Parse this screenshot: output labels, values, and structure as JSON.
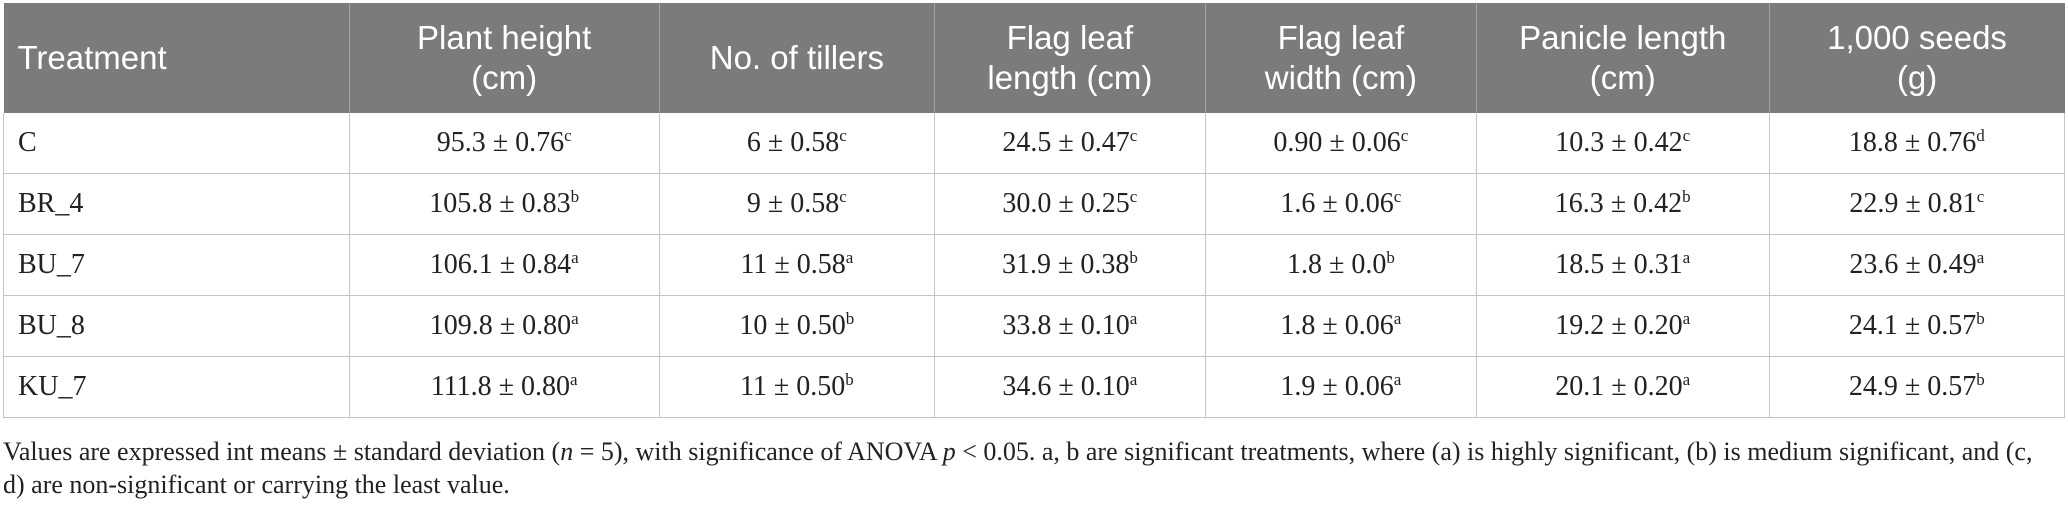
{
  "table": {
    "headers": [
      [
        "Treatment"
      ],
      [
        "Plant height",
        "(cm)"
      ],
      [
        "No. of tillers"
      ],
      [
        "Flag leaf",
        "length (cm)"
      ],
      [
        "Flag leaf",
        "width (cm)"
      ],
      [
        "Panicle length",
        "(cm)"
      ],
      [
        "1,000 seeds",
        "(g)"
      ]
    ],
    "rows": [
      [
        {
          "v": "C"
        },
        {
          "v": "95.3 ± 0.76",
          "s": "c"
        },
        {
          "v": "6 ± 0.58",
          "s": "c"
        },
        {
          "v": "24.5 ± 0.47",
          "s": "c"
        },
        {
          "v": "0.90 ± 0.06",
          "s": "c"
        },
        {
          "v": "10.3 ± 0.42",
          "s": "c"
        },
        {
          "v": "18.8 ± 0.76",
          "s": "d"
        }
      ],
      [
        {
          "v": "BR_4"
        },
        {
          "v": "105.8 ± 0.83",
          "s": "b"
        },
        {
          "v": "9 ± 0.58",
          "s": "c"
        },
        {
          "v": "30.0 ± 0.25",
          "s": "c"
        },
        {
          "v": "1.6 ± 0.06",
          "s": "c"
        },
        {
          "v": "16.3 ± 0.42",
          "s": "b"
        },
        {
          "v": "22.9 ± 0.81",
          "s": "c"
        }
      ],
      [
        {
          "v": "BU_7"
        },
        {
          "v": "106.1 ± 0.84",
          "s": "a"
        },
        {
          "v": "11 ± 0.58",
          "s": "a"
        },
        {
          "v": "31.9 ± 0.38",
          "s": "b"
        },
        {
          "v": "1.8 ± 0.0",
          "s": "b"
        },
        {
          "v": "18.5 ± 0.31",
          "s": "a"
        },
        {
          "v": "23.6 ± 0.49",
          "s": "a"
        }
      ],
      [
        {
          "v": "BU_8"
        },
        {
          "v": "109.8 ± 0.80",
          "s": "a"
        },
        {
          "v": "10 ± 0.50",
          "s": "b"
        },
        {
          "v": "33.8 ± 0.10",
          "s": "a"
        },
        {
          "v": "1.8 ± 0.06",
          "s": "a"
        },
        {
          "v": "19.2 ± 0.20",
          "s": "a"
        },
        {
          "v": "24.1 ± 0.57",
          "s": "b"
        }
      ],
      [
        {
          "v": "KU_7"
        },
        {
          "v": "111.8 ± 0.80",
          "s": "a"
        },
        {
          "v": "11 ± 0.50",
          "s": "b"
        },
        {
          "v": "34.6 ± 0.10",
          "s": "a"
        },
        {
          "v": "1.9 ± 0.06",
          "s": "a"
        },
        {
          "v": "20.1 ± 0.20",
          "s": "a"
        },
        {
          "v": "24.9 ± 0.57",
          "s": "b"
        }
      ]
    ]
  },
  "footnote": {
    "part1": "Values are expressed int means ± standard deviation (",
    "n": "n",
    "part2": " = 5), with significance of ANOVA ",
    "p": "p",
    "part3": " < 0.05. a, b are significant treatments, where (a) is highly significant, (b) is medium significant, and (c, d) are non-significant or carrying the least value."
  }
}
